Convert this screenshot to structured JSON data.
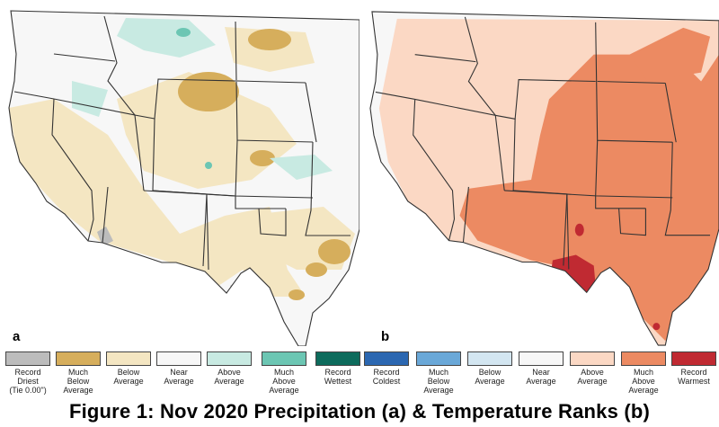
{
  "panels": [
    {
      "tag": "a",
      "variable": "precipitation"
    },
    {
      "tag": "b",
      "variable": "temperature"
    }
  ],
  "legend": {
    "precipitation": [
      {
        "label": "Record\nDriest\n(Tie 0.00\")",
        "color": "#bcbcbc"
      },
      {
        "label": "Much\nBelow\nAverage",
        "color": "#d6ae5c"
      },
      {
        "label": "Below\nAverage",
        "color": "#f4e6c2"
      },
      {
        "label": "Near\nAverage",
        "color": "#f7f7f7"
      },
      {
        "label": "Above\nAverage",
        "color": "#c8eae2"
      },
      {
        "label": "Much\nAbove\nAverage",
        "color": "#6cc6b3"
      },
      {
        "label": "Record\nWettest",
        "color": "#0d6b5c"
      }
    ],
    "temperature": [
      {
        "label": "Record\nColdest",
        "color": "#2b67b1"
      },
      {
        "label": "Much\nBelow\nAverage",
        "color": "#6aa8d8"
      },
      {
        "label": "Below\nAverage",
        "color": "#d3e6f1"
      },
      {
        "label": "Near\nAverage",
        "color": "#f7f7f7"
      },
      {
        "label": "Above\nAverage",
        "color": "#fbd8c4"
      },
      {
        "label": "Much\nAbove\nAverage",
        "color": "#ec8a62"
      },
      {
        "label": "Record\nWarmest",
        "color": "#c02a32"
      }
    ]
  },
  "caption": "Figure 1: Nov 2020 Precipitation (a) & Temperature Ranks (b)"
}
